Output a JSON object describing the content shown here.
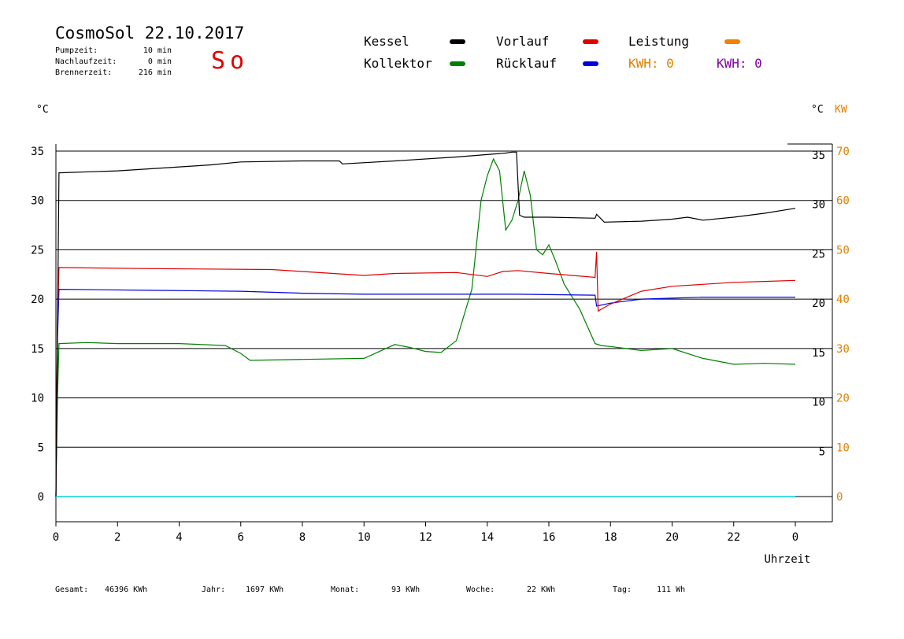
{
  "header": {
    "title": "CosmoSol 22.10.2017",
    "day": "So",
    "stats": [
      {
        "label": "Pumpzeit:",
        "value": "10 min"
      },
      {
        "label": "Nachlaufzeit:",
        "value": "0 min"
      },
      {
        "label": "Brennerzeit:",
        "value": "216 min"
      }
    ]
  },
  "legend": {
    "kessel": {
      "label": "Kessel",
      "color": "#000000"
    },
    "vorlauf": {
      "label": "Vorlauf",
      "color": "#e00000"
    },
    "leistung": {
      "label": "Leistung",
      "color": "#f08000"
    },
    "kollektor": {
      "label": "Kollektor",
      "color": "#008000"
    },
    "ruecklauf": {
      "label": "Rücklauf",
      "color": "#0000e0"
    },
    "kwh1": {
      "text": "KWH: 0",
      "color": "#e08000"
    },
    "kwh2": {
      "text": "KWH: 0",
      "color": "#8000a0"
    }
  },
  "axes": {
    "left_unit": "°C",
    "right_unit_c": "°C",
    "right_unit_kw": "KW",
    "x_title": "Uhrzeit"
  },
  "footer": {
    "gesamt": {
      "label": "Gesamt:",
      "value": "46396 KWh"
    },
    "jahr": {
      "label": "Jahr:",
      "value": "1697 KWh"
    },
    "monat": {
      "label": "Monat:",
      "value": "93 KWh"
    },
    "woche": {
      "label": "Woche:",
      "value": "22 KWh"
    },
    "tag": {
      "label": "Tag:",
      "value": "111 Wh"
    }
  },
  "chart_data": {
    "type": "line",
    "xlabel": "Uhrzeit",
    "ylabel": "°C",
    "xlim": [
      0,
      24
    ],
    "ylim": [
      0,
      35
    ],
    "x_ticks": [
      "0",
      "2",
      "4",
      "6",
      "8",
      "10",
      "12",
      "14",
      "16",
      "18",
      "20",
      "22",
      "0"
    ],
    "y_ticks_left": [
      "0",
      "5",
      "10",
      "15",
      "20",
      "25",
      "30",
      "35"
    ],
    "y_ticks_right_c": [
      "5",
      "10",
      "15",
      "20",
      "25",
      "30",
      "35"
    ],
    "y_ticks_right_kw": [
      "0",
      "10",
      "20",
      "30",
      "40",
      "50",
      "60",
      "70"
    ],
    "grid": true,
    "series": [
      {
        "name": "Kessel",
        "color": "#000000",
        "x": [
          0,
          0.1,
          2,
          5,
          6,
          8,
          9.2,
          9.3,
          11,
          13,
          14.6,
          14.8,
          14.95,
          15.05,
          15.2,
          16,
          17.5,
          17.55,
          17.8,
          19,
          20,
          20.5,
          21,
          22,
          23,
          24
        ],
        "y": [
          0,
          32.8,
          33.0,
          33.6,
          33.9,
          34.0,
          34.0,
          33.7,
          34.0,
          34.4,
          34.8,
          34.9,
          34.9,
          28.5,
          28.3,
          28.3,
          28.2,
          28.6,
          27.8,
          27.9,
          28.1,
          28.3,
          28.0,
          28.3,
          28.7,
          29.2
        ]
      },
      {
        "name": "Vorlauf",
        "color": "#e00000",
        "x": [
          0,
          0.05,
          0.1,
          3,
          7,
          8,
          10,
          11,
          13,
          14,
          14.5,
          15,
          16,
          17.5,
          17.55,
          17.6,
          18,
          19,
          20,
          21,
          22,
          23,
          24
        ],
        "y": [
          0,
          18.0,
          23.2,
          23.1,
          23.0,
          22.8,
          22.4,
          22.6,
          22.7,
          22.3,
          22.8,
          22.9,
          22.6,
          22.2,
          24.8,
          18.8,
          19.5,
          20.8,
          21.3,
          21.5,
          21.7,
          21.8,
          21.9
        ]
      },
      {
        "name": "Rücklauf",
        "color": "#0000e0",
        "x": [
          0,
          0.05,
          0.1,
          3,
          6,
          8,
          10,
          13,
          14,
          15,
          17.5,
          17.55,
          18,
          19,
          20,
          21,
          22,
          24
        ],
        "y": [
          0,
          16.0,
          21.0,
          20.9,
          20.8,
          20.6,
          20.5,
          20.5,
          20.5,
          20.5,
          20.4,
          19.3,
          19.6,
          20.0,
          20.1,
          20.2,
          20.2,
          20.2
        ]
      },
      {
        "name": "Kollektor",
        "color": "#008000",
        "x": [
          0,
          0.05,
          0.1,
          1,
          2,
          4,
          5.5,
          6,
          6.3,
          8,
          10,
          11,
          11.5,
          12,
          12.5,
          13,
          13.5,
          13.8,
          14,
          14.2,
          14.4,
          14.6,
          14.8,
          15.0,
          15.2,
          15.4,
          15.6,
          15.8,
          16.0,
          16.2,
          16.5,
          17.0,
          17.5,
          17.7,
          18.0,
          18.5,
          19,
          20,
          21,
          22,
          23,
          24
        ],
        "y": [
          0,
          10.0,
          15.5,
          15.6,
          15.5,
          15.5,
          15.3,
          14.5,
          13.8,
          13.9,
          14.0,
          15.4,
          15.1,
          14.7,
          14.6,
          15.8,
          21.0,
          30.0,
          32.5,
          34.2,
          33.0,
          27.0,
          28.0,
          30.0,
          33.0,
          30.5,
          25.0,
          24.5,
          25.5,
          24.0,
          21.5,
          19.0,
          15.5,
          15.3,
          15.2,
          15.0,
          14.8,
          15.0,
          14.0,
          13.4,
          13.5,
          13.4
        ]
      },
      {
        "name": "Leistung",
        "color": "#00d0d0",
        "x": [
          0,
          24
        ],
        "y": [
          0,
          0
        ]
      }
    ]
  }
}
